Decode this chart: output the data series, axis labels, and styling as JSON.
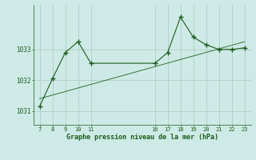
{
  "line_x": [
    7,
    8,
    9,
    10,
    11,
    16,
    17,
    18,
    19,
    20,
    21,
    22,
    23
  ],
  "line_y": [
    1031.15,
    1032.05,
    1032.9,
    1033.25,
    1032.55,
    1032.55,
    1032.9,
    1034.05,
    1033.4,
    1033.15,
    1033.0,
    1033.0,
    1033.05
  ],
  "trend_x": [
    7,
    23
  ],
  "trend_y": [
    1031.4,
    1033.25
  ],
  "yticks": [
    1031,
    1032,
    1033
  ],
  "xticks": [
    7,
    8,
    9,
    10,
    11,
    16,
    17,
    18,
    19,
    20,
    21,
    22,
    23
  ],
  "xlabel": "Graphe pression niveau de la mer (hPa)",
  "bg_color": "#ceeae6",
  "line_color": "#1a5c1a",
  "grid_color_major": "#aac8c0",
  "grid_color_minor": "#c0dcd8",
  "xlim": [
    6.5,
    23.5
  ],
  "ylim": [
    1030.55,
    1034.45
  ]
}
